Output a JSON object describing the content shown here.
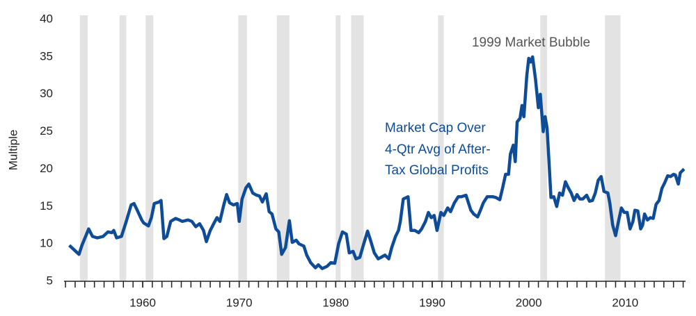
{
  "chart_data": {
    "type": "line",
    "ylabel": "Multiple",
    "annotations": [
      "1999 Market Bubble"
    ],
    "series_label": [
      "Market Cap Over",
      "4-Qtr Avg of After-",
      "Tax Global Profits"
    ],
    "color": "#0f4c97",
    "shade_color": "#e3e3e3",
    "grid": false,
    "xlim": [
      1951.85,
      2016.25
    ],
    "ylim": [
      5,
      40
    ],
    "xticks": [
      1960,
      1970,
      1980,
      1990,
      2000,
      2010
    ],
    "xminorticks": [
      1952,
      1953,
      1954,
      1955,
      1956,
      1957,
      1958,
      1959,
      1960,
      1961,
      1962,
      1963,
      1964,
      1965,
      1966,
      1967,
      1968,
      1969,
      1970,
      1971,
      1972,
      1973,
      1974,
      1975,
      1976,
      1977,
      1978,
      1979,
      1980,
      1981,
      1982,
      1983,
      1984,
      1985,
      1986,
      1987,
      1988,
      1989,
      1990,
      1991,
      1992,
      1993,
      1994,
      1995,
      1996,
      1997,
      1998,
      1999,
      2000,
      2001,
      2002,
      2003,
      2004,
      2005,
      2006,
      2007,
      2008,
      2009,
      2010,
      2011,
      2012,
      2013,
      2014,
      2015,
      2016
    ],
    "yticks": [
      5,
      10,
      15,
      20,
      25,
      30,
      35,
      40
    ],
    "shaded_periods": [
      [
        1953.5,
        1954.3
      ],
      [
        1957.6,
        1958.3
      ],
      [
        1960.3,
        1961.1
      ],
      [
        1969.9,
        1970.8
      ],
      [
        1973.9,
        1975.2
      ],
      [
        1980.0,
        1980.5
      ],
      [
        1981.6,
        1982.9
      ],
      [
        1990.6,
        1991.2
      ],
      [
        2001.2,
        2001.9
      ],
      [
        2007.9,
        2009.5
      ]
    ],
    "x": [
      1952.4,
      1953.4,
      1953.7,
      1954.4,
      1954.8,
      1955.3,
      1955.9,
      1956.4,
      1956.8,
      1957.0,
      1957.3,
      1957.8,
      1958.3,
      1958.8,
      1959.1,
      1959.4,
      1959.9,
      1960.1,
      1960.6,
      1960.9,
      1961.2,
      1961.7,
      1961.9,
      1962.2,
      1962.5,
      1962.9,
      1963.4,
      1963.8,
      1964.1,
      1964.7,
      1965.1,
      1965.5,
      1965.9,
      1966.3,
      1966.6,
      1967.0,
      1967.4,
      1967.7,
      1968.0,
      1968.4,
      1968.7,
      1969.0,
      1969.4,
      1969.8,
      1970.0,
      1970.3,
      1970.7,
      1971.0,
      1971.4,
      1971.8,
      1972.1,
      1972.4,
      1972.8,
      1973.1,
      1973.4,
      1973.8,
      1974.1,
      1974.4,
      1974.8,
      1975.2,
      1975.5,
      1975.9,
      1976.2,
      1976.7,
      1977.0,
      1977.4,
      1977.9,
      1978.2,
      1978.6,
      1979.1,
      1979.5,
      1979.9,
      1980.3,
      1980.7,
      1981.1,
      1981.4,
      1981.8,
      1982.1,
      1982.5,
      1982.9,
      1983.3,
      1983.6,
      1984.0,
      1984.4,
      1984.7,
      1985.1,
      1985.5,
      1985.8,
      1986.2,
      1986.5,
      1986.7,
      1987.0,
      1987.5,
      1987.8,
      1988.2,
      1988.6,
      1988.9,
      1989.3,
      1989.6,
      1989.9,
      1990.2,
      1990.5,
      1990.9,
      1991.2,
      1991.6,
      1991.9,
      1992.3,
      1992.7,
      1993.0,
      1993.5,
      1994.0,
      1994.3,
      1994.7,
      1995.0,
      1995.3,
      1995.7,
      1996.3,
      1996.6,
      1997.0,
      1997.3,
      1997.6,
      1997.9,
      1998.1,
      1998.4,
      1998.6,
      1998.8,
      1999.1,
      1999.3,
      1999.5,
      1999.8,
      2000.0,
      2000.2,
      2000.4,
      2000.7,
      2001.0,
      2001.2,
      2001.5,
      2001.7,
      2001.9,
      2002.1,
      2002.3,
      2002.6,
      2002.9,
      2003.2,
      2003.5,
      2003.8,
      2004.1,
      2004.4,
      2004.7,
      2005.0,
      2005.3,
      2005.6,
      2006.0,
      2006.3,
      2006.6,
      2006.9,
      2007.2,
      2007.5,
      2007.8,
      2008.2,
      2008.4,
      2008.7,
      2009.0,
      2009.3,
      2009.6,
      2009.9,
      2010.2,
      2010.5,
      2010.8,
      2011.0,
      2011.3,
      2011.6,
      2011.8,
      2012.0,
      2012.3,
      2012.6,
      2012.9,
      2013.2,
      2013.5,
      2013.8,
      2014.1,
      2014.4,
      2014.7,
      2015.0,
      2015.2,
      2015.5,
      2015.7,
      2016.1
    ],
    "values": [
      9.8,
      8.6,
      9.8,
      12.0,
      11.0,
      10.8,
      11.0,
      11.6,
      11.5,
      11.8,
      10.8,
      11.0,
      13.0,
      15.2,
      15.4,
      14.6,
      13.2,
      12.8,
      12.4,
      13.5,
      15.4,
      15.6,
      15.8,
      10.7,
      11.0,
      13.0,
      13.4,
      13.2,
      13.0,
      13.2,
      13.0,
      12.3,
      12.7,
      11.8,
      10.3,
      11.8,
      12.8,
      13.5,
      13.0,
      15.2,
      16.6,
      15.5,
      15.2,
      15.4,
      13.0,
      16.0,
      17.5,
      18.0,
      16.8,
      16.5,
      16.4,
      15.6,
      16.7,
      14.3,
      14.0,
      12.0,
      11.6,
      8.6,
      9.5,
      13.1,
      10.2,
      10.5,
      10.0,
      9.7,
      8.5,
      7.5,
      6.8,
      7.2,
      6.7,
      7.0,
      7.5,
      7.4,
      10.0,
      11.6,
      11.3,
      8.8,
      9.0,
      8.0,
      8.2,
      10.0,
      11.7,
      10.5,
      8.8,
      8.0,
      8.2,
      8.5,
      8.0,
      9.5,
      11.0,
      11.8,
      13.0,
      16.0,
      16.3,
      11.8,
      11.8,
      11.5,
      12.0,
      13.0,
      14.2,
      13.5,
      13.8,
      11.8,
      14.2,
      13.8,
      14.8,
      14.3,
      15.5,
      16.3,
      16.3,
      16.5,
      14.5,
      14.0,
      13.6,
      14.5,
      15.5,
      16.3,
      16.3,
      16.2,
      15.9,
      17.5,
      19.3,
      19.3,
      22.0,
      23.2,
      21.0,
      26.3,
      26.8,
      28.5,
      27.0,
      32.5,
      34.8,
      34.3,
      35.0,
      32.0,
      28.2,
      30.0,
      25.0,
      27.0,
      25.5,
      21.0,
      16.2,
      16.3,
      15.0,
      16.8,
      16.5,
      18.3,
      17.5,
      16.8,
      15.8,
      16.6,
      16.0,
      16.0,
      16.5,
      15.7,
      15.8,
      16.8,
      18.5,
      19.0,
      17.0,
      16.8,
      15.5,
      12.5,
      11.1,
      13.0,
      14.8,
      14.2,
      14.2,
      12.0,
      13.0,
      14.5,
      14.4,
      12.0,
      12.5,
      14.0,
      13.2,
      13.5,
      13.4,
      15.3,
      15.8,
      17.4,
      18.2,
      19.1,
      19.0,
      19.3,
      19.2,
      18.0,
      19.5,
      20.0
    ]
  }
}
